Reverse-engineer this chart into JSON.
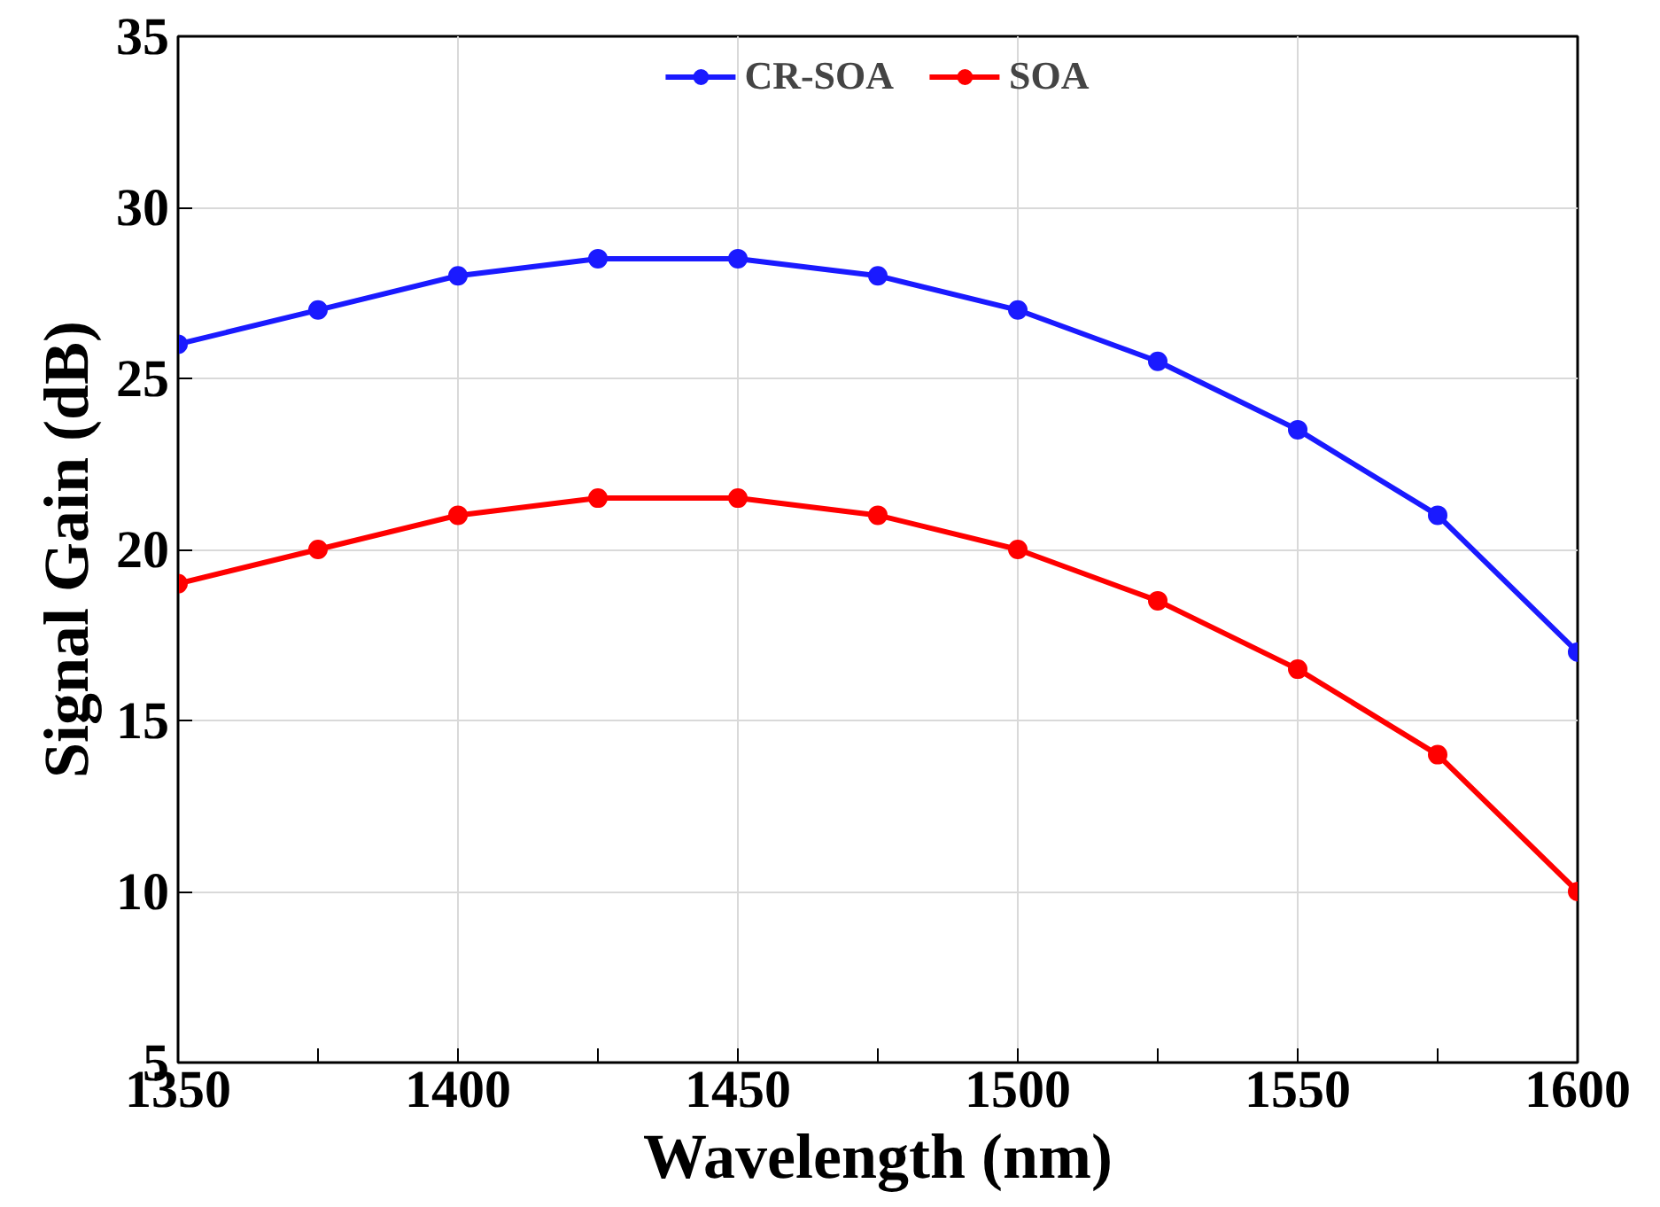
{
  "chart_data": {
    "type": "line",
    "xlabel": "Wavelength (nm)",
    "ylabel": "Signal Gain (dB)",
    "x": [
      1350,
      1375,
      1400,
      1425,
      1450,
      1475,
      1500,
      1525,
      1550,
      1575,
      1600
    ],
    "series": [
      {
        "name": "CR-SOA",
        "color": "#1a1aff",
        "values": [
          26,
          27,
          28,
          28.5,
          28.5,
          28,
          27,
          25.5,
          23.5,
          21,
          17
        ]
      },
      {
        "name": "SOA",
        "color": "#ff0000",
        "values": [
          19,
          20,
          21,
          21.5,
          21.5,
          21,
          20,
          18.5,
          16.5,
          14,
          10
        ]
      }
    ],
    "xlim": [
      1350,
      1600
    ],
    "xticks": [
      1350,
      1400,
      1450,
      1500,
      1550,
      1600
    ],
    "ylim": [
      5,
      35
    ],
    "yticks": [
      5,
      10,
      15,
      20,
      25,
      30,
      35
    ],
    "grid": true,
    "legend": "top",
    "marker": "circle",
    "line_style": "solid"
  }
}
